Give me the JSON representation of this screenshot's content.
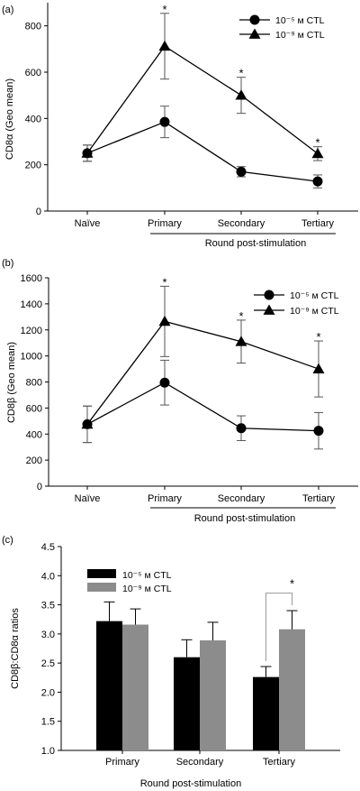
{
  "chart_data": [
    {
      "panel_label": "(a)",
      "type": "line",
      "categories": [
        "Naïve",
        "Primary",
        "Secondary",
        "Tertiary"
      ],
      "ylabel": "CD8α (Geo mean)",
      "xlabel": "Round post-stimulation",
      "ylim": [
        0,
        900
      ],
      "yticks": [
        0,
        200,
        400,
        600,
        800
      ],
      "legend_position": "top-right",
      "significance": [
        "",
        "*",
        "*",
        "*"
      ],
      "series": [
        {
          "name": "10⁻⁵ м CTL",
          "marker": "circle",
          "values": [
            250,
            385,
            170,
            128
          ],
          "errors": [
            35,
            68,
            22,
            28
          ]
        },
        {
          "name": "10⁻⁹ м CTL",
          "marker": "triangle",
          "values": [
            250,
            712,
            500,
            248
          ],
          "errors": [
            35,
            142,
            78,
            30
          ]
        }
      ]
    },
    {
      "panel_label": "(b)",
      "type": "line",
      "categories": [
        "Naïve",
        "Primary",
        "Secondary",
        "Tertiary"
      ],
      "ylabel": "CD8β (Geo mean)",
      "xlabel": "Round post-stimulation",
      "ylim": [
        0,
        1600
      ],
      "yticks": [
        0,
        200,
        400,
        600,
        800,
        1000,
        1200,
        1400,
        1600
      ],
      "legend_position": "top-right",
      "significance": [
        "",
        "*",
        "*",
        "*"
      ],
      "series": [
        {
          "name": "10⁻⁵ м CTL",
          "marker": "circle",
          "values": [
            475,
            795,
            445,
            425
          ],
          "errors": [
            140,
            172,
            95,
            140
          ]
        },
        {
          "name": "10⁻⁹ м CTL",
          "marker": "triangle",
          "values": [
            475,
            1265,
            1110,
            900
          ],
          "errors": [
            140,
            270,
            165,
            215
          ]
        }
      ]
    },
    {
      "panel_label": "(c)",
      "type": "bar",
      "categories": [
        "Primary",
        "Secondary",
        "Tertiary"
      ],
      "ylabel": "CD8β:CD8α ratios",
      "xlabel": "Round post-stimulation",
      "ylim": [
        1.0,
        4.5
      ],
      "yticks": [
        1.0,
        1.5,
        2.0,
        2.5,
        3.0,
        3.5,
        4.0,
        4.5
      ],
      "legend_position": "top-left",
      "significance_tertiary": "*",
      "series": [
        {
          "name": "10⁻⁵ м CTL",
          "color": "#000000",
          "values": [
            3.22,
            2.6,
            2.26
          ],
          "errors": [
            0.33,
            0.3,
            0.18
          ]
        },
        {
          "name": "10⁻⁹ м CTL",
          "color": "#8c8c8c",
          "values": [
            3.16,
            2.89,
            3.08
          ],
          "errors": [
            0.27,
            0.31,
            0.32
          ]
        }
      ]
    }
  ]
}
